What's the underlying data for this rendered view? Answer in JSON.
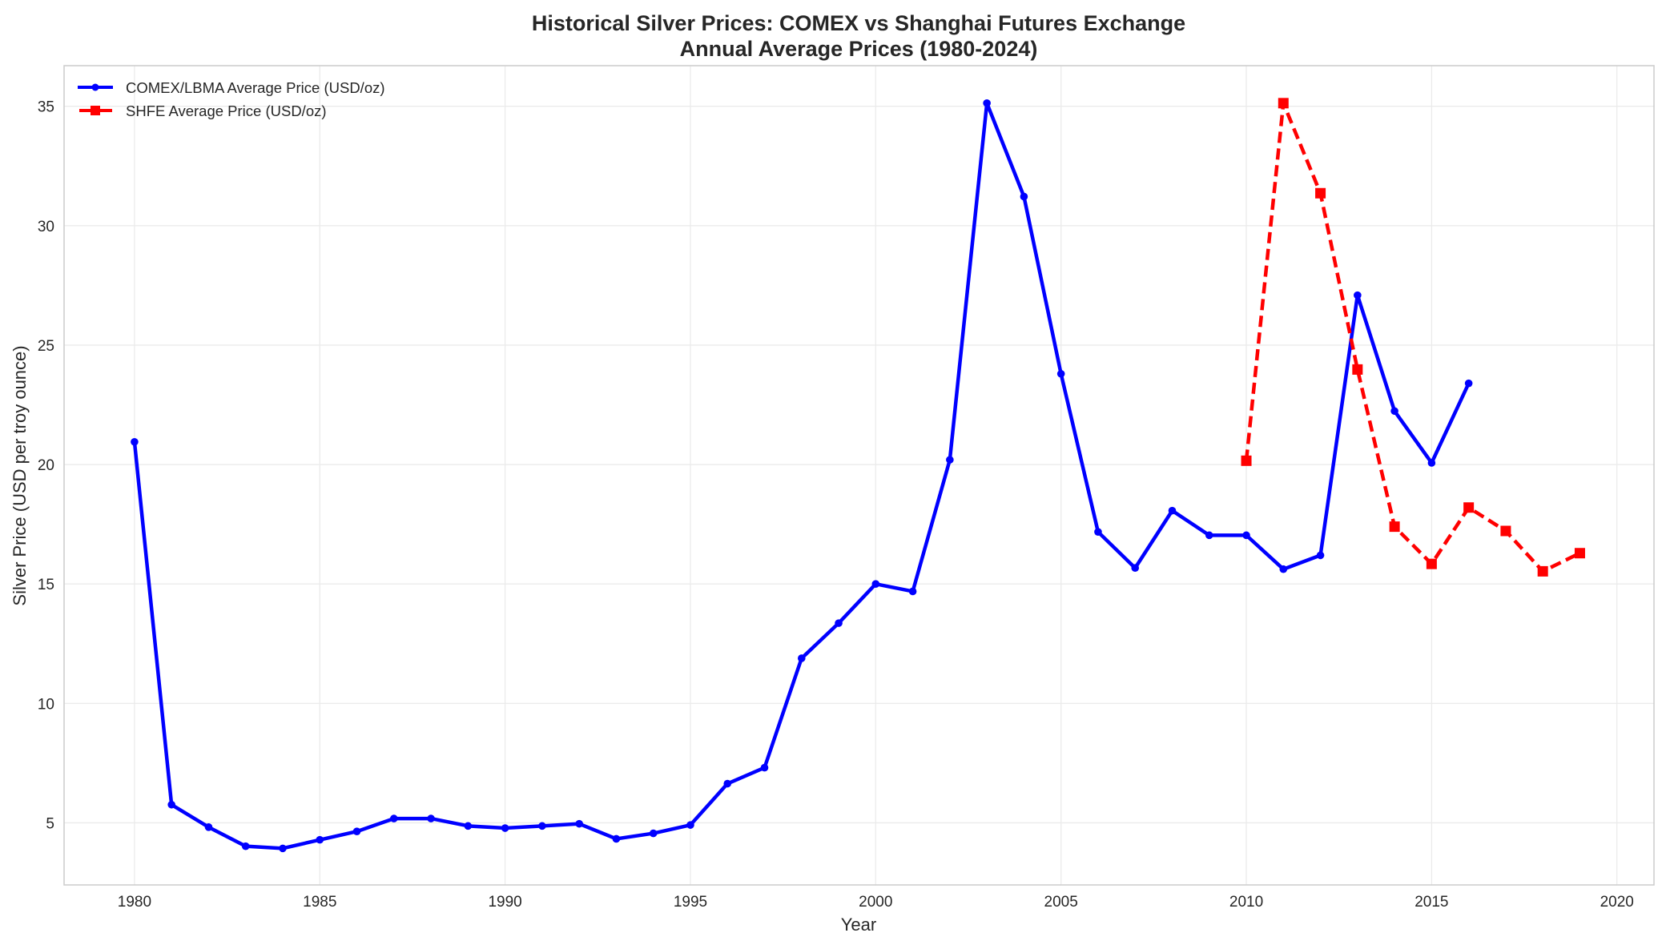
{
  "chart_data": {
    "type": "line",
    "title": "Historical Silver Prices: COMEX vs Shanghai Futures Exchange",
    "subtitle": "Annual Average Prices (1980-2024)",
    "xlabel": "Year",
    "ylabel": "Silver Price (USD per troy ounce)",
    "xlim": [
      1978.1,
      2021.0
    ],
    "ylim": [
      2.4,
      36.7
    ],
    "xticks": [
      1980,
      1985,
      1990,
      1995,
      2000,
      2005,
      2010,
      2015,
      2020
    ],
    "yticks": [
      5,
      10,
      15,
      20,
      25,
      30,
      35
    ],
    "grid": true,
    "legend_position": "top-left",
    "series": [
      {
        "name": "COMEX/LBMA Average Price (USD/oz)",
        "color": "#0000ff",
        "style": "solid",
        "marker": "circle",
        "x": [
          1980,
          1981,
          1982,
          1983,
          1984,
          1985,
          1986,
          1987,
          1988,
          1989,
          1990,
          1991,
          1992,
          1993,
          1994,
          1995,
          1996,
          1997,
          1998,
          1999,
          2000,
          2001,
          2002,
          2003,
          2004,
          2005,
          2006,
          2007,
          2008,
          2009,
          2010,
          2011,
          2012,
          2013,
          2014,
          2015,
          2016
        ],
        "values": [
          20.95,
          5.76,
          4.82,
          4.02,
          3.93,
          4.29,
          4.64,
          5.18,
          5.18,
          4.87,
          4.78,
          4.87,
          4.96,
          4.33,
          4.56,
          4.91,
          6.64,
          7.31,
          11.89,
          13.36,
          15.0,
          14.69,
          20.2,
          35.13,
          31.22,
          23.8,
          17.18,
          15.67,
          18.07,
          17.04,
          17.04,
          15.62,
          16.2,
          27.09,
          22.24,
          20.07,
          23.4
        ]
      },
      {
        "name": "SHFE Average Price (USD/oz)",
        "color": "#ff0000",
        "style": "dashed",
        "marker": "square",
        "x": [
          2010,
          2011,
          2012,
          2013,
          2014,
          2015,
          2016,
          2017,
          2018,
          2019
        ],
        "values": [
          20.16,
          35.13,
          31.36,
          23.98,
          17.4,
          15.84,
          18.2,
          17.22,
          15.53,
          16.29
        ]
      }
    ]
  }
}
